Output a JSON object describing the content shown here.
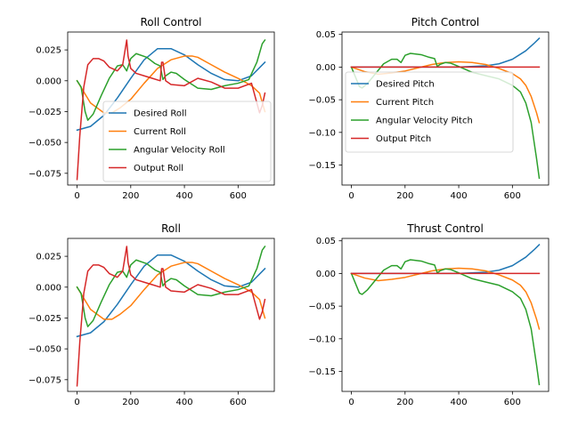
{
  "chart_data": [
    {
      "type": "line",
      "title": "Roll Control",
      "xlabel": "",
      "ylabel": "",
      "xlim": [
        -35,
        735
      ],
      "ylim": [
        -0.0845,
        0.0395
      ],
      "xticks": [
        0,
        200,
        400,
        600
      ],
      "yticks": [
        -0.075,
        -0.05,
        -0.025,
        0.0,
        0.025
      ],
      "ytick_labels": [
        "−0.075",
        "−0.050",
        "−0.025",
        "0.000",
        "0.025"
      ],
      "legend": "lower-right",
      "series": [
        {
          "name": "Desired Roll",
          "color": "#1f77b4",
          "x": [
            0,
            50,
            100,
            150,
            200,
            250,
            300,
            350,
            400,
            450,
            500,
            550,
            600,
            650,
            700
          ],
          "y": [
            -0.04,
            -0.037,
            -0.028,
            -0.014,
            0.002,
            0.017,
            0.026,
            0.026,
            0.021,
            0.013,
            0.006,
            0.001,
            0.0,
            0.004,
            0.015
          ]
        },
        {
          "name": "Current Roll",
          "color": "#ff7f0e",
          "x": [
            0,
            50,
            100,
            130,
            160,
            200,
            250,
            300,
            350,
            400,
            430,
            450,
            500,
            550,
            600,
            650,
            680,
            700
          ],
          "y": [
            0.0,
            -0.018,
            -0.026,
            -0.026,
            -0.022,
            -0.015,
            -0.002,
            0.01,
            0.017,
            0.02,
            0.02,
            0.019,
            0.013,
            0.007,
            0.002,
            -0.004,
            -0.01,
            -0.025
          ]
        },
        {
          "name": "Angular Velocity Roll",
          "color": "#2ca02c",
          "x": [
            0,
            15,
            30,
            40,
            60,
            90,
            120,
            150,
            170,
            185,
            200,
            220,
            260,
            290,
            310,
            320,
            330,
            350,
            370,
            400,
            450,
            500,
            550,
            600,
            640,
            670,
            690,
            700
          ],
          "y": [
            0.0,
            -0.005,
            -0.025,
            -0.032,
            -0.027,
            -0.012,
            0.002,
            0.012,
            0.013,
            0.008,
            0.018,
            0.022,
            0.019,
            0.014,
            0.012,
            0.001,
            0.004,
            0.007,
            0.006,
            0.001,
            -0.006,
            -0.007,
            -0.004,
            -0.002,
            0.001,
            0.015,
            0.03,
            0.033
          ]
        },
        {
          "name": "Output Roll",
          "color": "#d62728",
          "x": [
            0,
            10,
            25,
            40,
            60,
            80,
            100,
            120,
            150,
            170,
            185,
            190,
            200,
            220,
            250,
            280,
            310,
            315,
            320,
            330,
            350,
            400,
            450,
            500,
            550,
            600,
            650,
            680,
            690,
            700
          ],
          "y": [
            -0.08,
            -0.045,
            -0.005,
            0.013,
            0.018,
            0.018,
            0.016,
            0.011,
            0.008,
            0.013,
            0.033,
            0.02,
            0.01,
            0.006,
            0.004,
            0.002,
            0.0,
            0.015,
            0.015,
            0.0,
            -0.003,
            -0.004,
            0.002,
            -0.001,
            -0.006,
            -0.006,
            -0.002,
            -0.026,
            -0.02,
            -0.01
          ]
        }
      ]
    },
    {
      "type": "line",
      "title": "Pitch Control",
      "xlabel": "",
      "ylabel": "",
      "xlim": [
        -35,
        735
      ],
      "ylim": [
        -0.1806,
        0.0537
      ],
      "xticks": [
        0,
        200,
        400,
        600
      ],
      "yticks": [
        -0.15,
        -0.1,
        -0.05,
        0.0,
        0.05
      ],
      "ytick_labels": [
        "−0.15",
        "−0.10",
        "−0.05",
        "0.00",
        "0.05"
      ],
      "legend": "center-left",
      "series": [
        {
          "name": "Desired Pitch",
          "color": "#1f77b4",
          "x": [
            0,
            100,
            200,
            300,
            400,
            500,
            550,
            600,
            650,
            680,
            700
          ],
          "y": [
            0.0,
            0.0,
            0.0,
            0.0,
            0.0,
            0.002,
            0.005,
            0.012,
            0.025,
            0.036,
            0.044
          ]
        },
        {
          "name": "Current Pitch",
          "color": "#ff7f0e",
          "x": [
            0,
            50,
            100,
            150,
            200,
            250,
            300,
            350,
            400,
            450,
            500,
            550,
            600,
            630,
            650,
            670,
            690,
            700
          ],
          "y": [
            0.0,
            -0.007,
            -0.011,
            -0.009,
            -0.006,
            -0.001,
            0.004,
            0.007,
            0.008,
            0.007,
            0.004,
            -0.002,
            -0.01,
            -0.018,
            -0.028,
            -0.045,
            -0.07,
            -0.085
          ]
        },
        {
          "name": "Angular Velocity Pitch",
          "color": "#2ca02c",
          "x": [
            0,
            15,
            30,
            40,
            60,
            90,
            120,
            150,
            170,
            185,
            200,
            220,
            260,
            290,
            310,
            320,
            330,
            350,
            370,
            400,
            450,
            500,
            550,
            600,
            630,
            650,
            670,
            690,
            700
          ],
          "y": [
            0.0,
            -0.015,
            -0.03,
            -0.032,
            -0.025,
            -0.01,
            0.005,
            0.012,
            0.012,
            0.007,
            0.018,
            0.021,
            0.019,
            0.015,
            0.013,
            0.001,
            0.004,
            0.007,
            0.006,
            0.001,
            -0.008,
            -0.013,
            -0.018,
            -0.028,
            -0.038,
            -0.055,
            -0.085,
            -0.14,
            -0.17
          ]
        },
        {
          "name": "Output Pitch",
          "color": "#d62728",
          "x": [
            0,
            700
          ],
          "y": [
            0.0,
            0.0
          ]
        }
      ]
    },
    {
      "type": "line",
      "title": "Roll",
      "xlabel": "",
      "ylabel": "",
      "xlim": [
        -35,
        735
      ],
      "ylim": [
        -0.0845,
        0.0395
      ],
      "xticks": [
        0,
        200,
        400,
        600
      ],
      "yticks": [
        -0.075,
        -0.05,
        -0.025,
        0.0,
        0.025
      ],
      "ytick_labels": [
        "−0.075",
        "−0.050",
        "−0.025",
        "0.000",
        "0.025"
      ],
      "legend": "",
      "series": [
        {
          "name": "",
          "color": "#1f77b4",
          "x": [
            0,
            50,
            100,
            150,
            200,
            250,
            300,
            350,
            400,
            450,
            500,
            550,
            600,
            650,
            700
          ],
          "y": [
            -0.04,
            -0.037,
            -0.028,
            -0.014,
            0.002,
            0.017,
            0.026,
            0.026,
            0.021,
            0.013,
            0.006,
            0.001,
            0.0,
            0.004,
            0.015
          ]
        },
        {
          "name": "",
          "color": "#ff7f0e",
          "x": [
            0,
            50,
            100,
            130,
            160,
            200,
            250,
            300,
            350,
            400,
            430,
            450,
            500,
            550,
            600,
            650,
            680,
            700
          ],
          "y": [
            0.0,
            -0.018,
            -0.026,
            -0.026,
            -0.022,
            -0.015,
            -0.002,
            0.01,
            0.017,
            0.02,
            0.02,
            0.019,
            0.013,
            0.007,
            0.002,
            -0.004,
            -0.01,
            -0.025
          ]
        },
        {
          "name": "",
          "color": "#2ca02c",
          "x": [
            0,
            15,
            30,
            40,
            60,
            90,
            120,
            150,
            170,
            185,
            200,
            220,
            260,
            290,
            310,
            320,
            330,
            350,
            370,
            400,
            450,
            500,
            550,
            600,
            640,
            670,
            690,
            700
          ],
          "y": [
            0.0,
            -0.005,
            -0.025,
            -0.032,
            -0.027,
            -0.012,
            0.002,
            0.012,
            0.013,
            0.008,
            0.018,
            0.022,
            0.019,
            0.014,
            0.012,
            0.001,
            0.004,
            0.007,
            0.006,
            0.001,
            -0.006,
            -0.007,
            -0.004,
            -0.002,
            0.001,
            0.015,
            0.03,
            0.033
          ]
        },
        {
          "name": "",
          "color": "#d62728",
          "x": [
            0,
            10,
            25,
            40,
            60,
            80,
            100,
            120,
            150,
            170,
            185,
            190,
            200,
            220,
            250,
            280,
            310,
            315,
            320,
            330,
            350,
            400,
            450,
            500,
            550,
            600,
            650,
            680,
            690,
            700
          ],
          "y": [
            -0.08,
            -0.045,
            -0.005,
            0.013,
            0.018,
            0.018,
            0.016,
            0.011,
            0.008,
            0.013,
            0.033,
            0.02,
            0.01,
            0.006,
            0.004,
            0.002,
            0.0,
            0.015,
            0.015,
            0.0,
            -0.003,
            -0.004,
            0.002,
            -0.001,
            -0.006,
            -0.006,
            -0.002,
            -0.026,
            -0.02,
            -0.01
          ]
        }
      ]
    },
    {
      "type": "line",
      "title": "Thrust Control",
      "xlabel": "",
      "ylabel": "",
      "xlim": [
        -35,
        735
      ],
      "ylim": [
        -0.1806,
        0.0537
      ],
      "xticks": [
        0,
        200,
        400,
        600
      ],
      "yticks": [
        -0.15,
        -0.1,
        -0.05,
        0.0,
        0.05
      ],
      "ytick_labels": [
        "−0.15",
        "−0.10",
        "−0.05",
        "0.00",
        "0.05"
      ],
      "legend": "",
      "series": [
        {
          "name": "",
          "color": "#1f77b4",
          "x": [
            0,
            100,
            200,
            300,
            400,
            500,
            550,
            600,
            650,
            680,
            700
          ],
          "y": [
            0.0,
            0.0,
            0.0,
            0.0,
            0.0,
            0.002,
            0.005,
            0.012,
            0.025,
            0.036,
            0.044
          ]
        },
        {
          "name": "",
          "color": "#ff7f0e",
          "x": [
            0,
            50,
            100,
            150,
            200,
            250,
            300,
            350,
            400,
            450,
            500,
            550,
            600,
            630,
            650,
            670,
            690,
            700
          ],
          "y": [
            0.0,
            -0.007,
            -0.011,
            -0.009,
            -0.006,
            -0.001,
            0.004,
            0.007,
            0.008,
            0.007,
            0.004,
            -0.002,
            -0.01,
            -0.018,
            -0.028,
            -0.045,
            -0.07,
            -0.085
          ]
        },
        {
          "name": "",
          "color": "#2ca02c",
          "x": [
            0,
            15,
            30,
            40,
            60,
            90,
            120,
            150,
            170,
            185,
            200,
            220,
            260,
            290,
            310,
            320,
            330,
            350,
            370,
            400,
            450,
            500,
            550,
            600,
            630,
            650,
            670,
            690,
            700
          ],
          "y": [
            0.0,
            -0.015,
            -0.03,
            -0.032,
            -0.025,
            -0.01,
            0.005,
            0.012,
            0.012,
            0.007,
            0.018,
            0.021,
            0.019,
            0.015,
            0.013,
            0.001,
            0.004,
            0.007,
            0.006,
            0.001,
            -0.008,
            -0.013,
            -0.018,
            -0.028,
            -0.038,
            -0.055,
            -0.085,
            -0.14,
            -0.17
          ]
        },
        {
          "name": "",
          "color": "#d62728",
          "x": [
            0,
            700
          ],
          "y": [
            0.0,
            0.0
          ]
        }
      ]
    }
  ]
}
